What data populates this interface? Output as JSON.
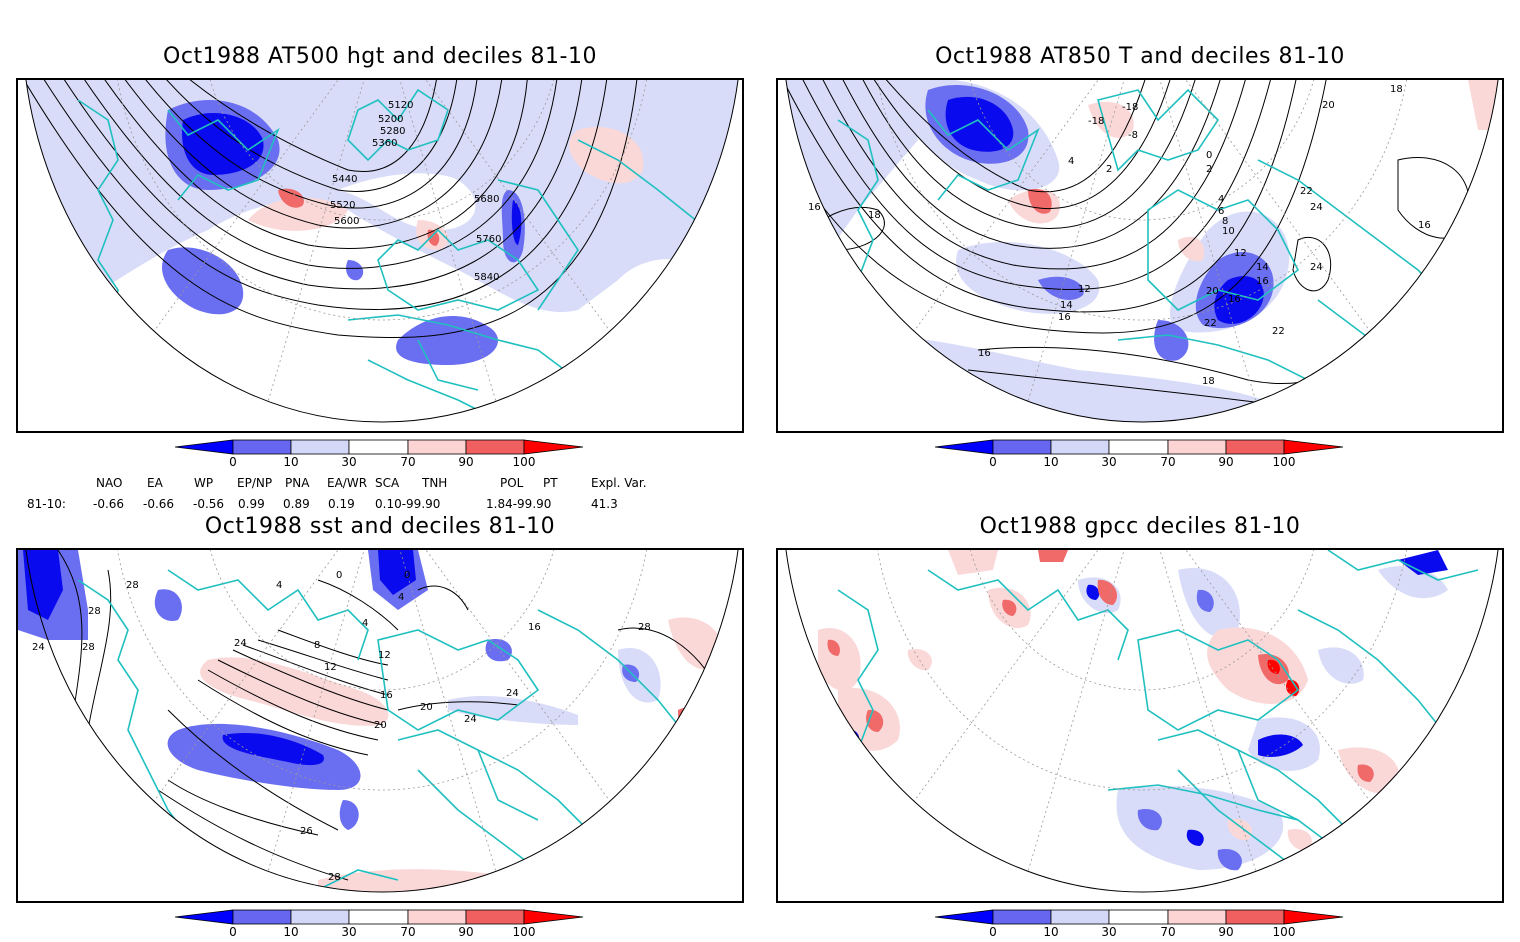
{
  "panels": {
    "tl": {
      "title": "Oct1988 AT500 hgt and deciles 81-10",
      "labels": [
        "5120",
        "5200",
        "5280",
        "5360",
        "5440",
        "5520",
        "5600",
        "5680",
        "5760",
        "5840"
      ]
    },
    "tr": {
      "title": "Oct1988 AT850 T and deciles 81-10",
      "labels": [
        "-18",
        "-18",
        "-8",
        "4",
        "2",
        "0",
        "2",
        "4",
        "6",
        "8",
        "10",
        "12",
        "14",
        "16",
        "16",
        "18",
        "20",
        "22",
        "22",
        "24",
        "24",
        "16",
        "16",
        "18",
        "12",
        "14",
        "16",
        "20",
        "22",
        "18",
        "16"
      ]
    },
    "bl": {
      "title": "Oct1988 sst and deciles 81-10",
      "labels": [
        "28",
        "28",
        "24",
        "28",
        "0",
        "4",
        "0",
        "4",
        "4",
        "8",
        "12",
        "16",
        "20",
        "24",
        "24",
        "12",
        "16",
        "24",
        "20",
        "28",
        "26",
        "28"
      ]
    },
    "br": {
      "title": "Oct1988 gpcc deciles 81-10",
      "labels": []
    }
  },
  "colorbar": {
    "ticks": [
      "0",
      "10",
      "30",
      "70",
      "90",
      "100"
    ],
    "colors": [
      "#0000ff",
      "#6666f0",
      "#d4d8f8",
      "#ffffff",
      "#fcd4d4",
      "#f06060",
      "#ff0000"
    ]
  },
  "indices": {
    "headers": [
      "NAO",
      "EA",
      "WP",
      "EP/NP",
      "PNA",
      "EA/WR",
      "SCA",
      "TNH",
      "POL",
      "PT",
      "Expl. Var."
    ],
    "row_label": "81-10:",
    "values": [
      "-0.66",
      "-0.66",
      "-0.56",
      "0.99",
      "0.89",
      "0.19",
      "0.10-99.90",
      "1.84-99.90",
      "41.3"
    ]
  },
  "colors": {
    "coast": "#20c0c0",
    "contour": "#000000",
    "grid": "#999999"
  }
}
